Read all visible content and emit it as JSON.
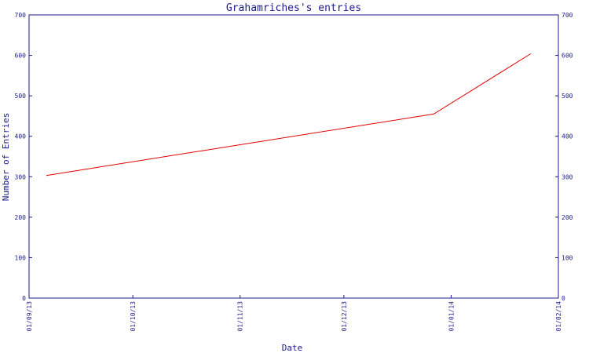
{
  "chart_data": {
    "type": "line",
    "title": "Grahamriches's entries",
    "xlabel": "Date",
    "ylabel": "Number of Entries",
    "x_tick_labels": [
      "01/09/13",
      "01/10/13",
      "01/11/13",
      "01/12/13",
      "01/01/14",
      "01/02/14"
    ],
    "x_ticks": [
      "2013-09-01",
      "2013-10-01",
      "2013-11-01",
      "2013-12-01",
      "2014-01-01",
      "2014-02-01"
    ],
    "xlim": [
      "2013-09-01",
      "2014-02-01"
    ],
    "y_ticks": [
      0,
      100,
      200,
      300,
      400,
      500,
      600,
      700
    ],
    "ylim": [
      0,
      700
    ],
    "right_axis_ticks": [
      0,
      100,
      200,
      300,
      400,
      500,
      600,
      700
    ],
    "grid": false,
    "series": [
      {
        "x": [
          "2013-09-06",
          "2013-12-27",
          "2014-01-24"
        ],
        "y": [
          303,
          455,
          604
        ]
      }
    ],
    "colors": {
      "axis": "#1a1a8c",
      "line": "#e00000",
      "background": "#ffffff"
    }
  }
}
